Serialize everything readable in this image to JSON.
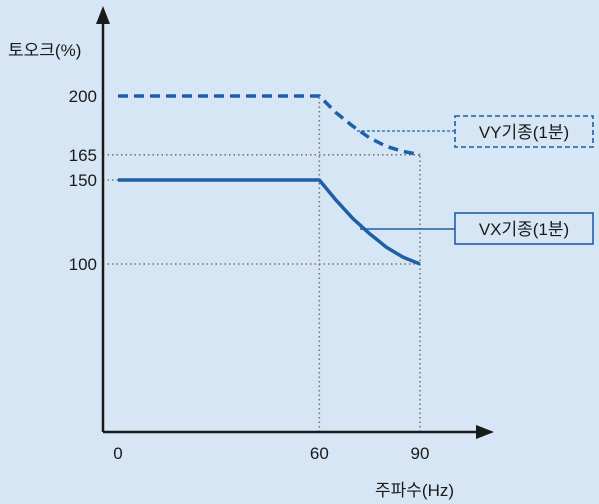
{
  "chart_data": {
    "type": "line",
    "ylabel": "토오크(%)",
    "xlabel": "주파수(Hz)",
    "xlim": [
      0,
      90
    ],
    "ylim": [
      0,
      200
    ],
    "x_ticks": [
      0,
      60,
      90
    ],
    "y_ticks": [
      100,
      150,
      165,
      200
    ],
    "x_tick_labels": [
      "0",
      "60",
      "90"
    ],
    "y_tick_labels": [
      "100",
      "150",
      "165",
      "200"
    ],
    "grid": false,
    "series": [
      {
        "name": "VY기종(1분)",
        "style": "dashed",
        "color": "#1f5fa8",
        "points": [
          [
            0,
            200
          ],
          [
            60,
            200
          ],
          [
            65,
            190
          ],
          [
            70,
            182
          ],
          [
            75,
            175
          ],
          [
            80,
            170
          ],
          [
            85,
            167
          ],
          [
            90,
            165
          ]
        ]
      },
      {
        "name": "VX기종(1분)",
        "style": "solid",
        "color": "#1f5fa8",
        "points": [
          [
            0,
            150
          ],
          [
            60,
            150
          ],
          [
            65,
            138
          ],
          [
            70,
            127
          ],
          [
            75,
            118
          ],
          [
            80,
            110
          ],
          [
            85,
            104
          ],
          [
            90,
            100
          ]
        ]
      }
    ],
    "reference_lines": [
      {
        "axis": "y",
        "value": 165,
        "to_x": 90
      },
      {
        "axis": "y",
        "value": 150,
        "to_x": 60
      },
      {
        "axis": "y",
        "value": 100,
        "to_x": 90
      },
      {
        "axis": "x",
        "value": 60,
        "from_y": 0,
        "to_y": 200
      },
      {
        "axis": "x",
        "value": 90,
        "from_y": 0,
        "to_y": 165
      }
    ]
  }
}
